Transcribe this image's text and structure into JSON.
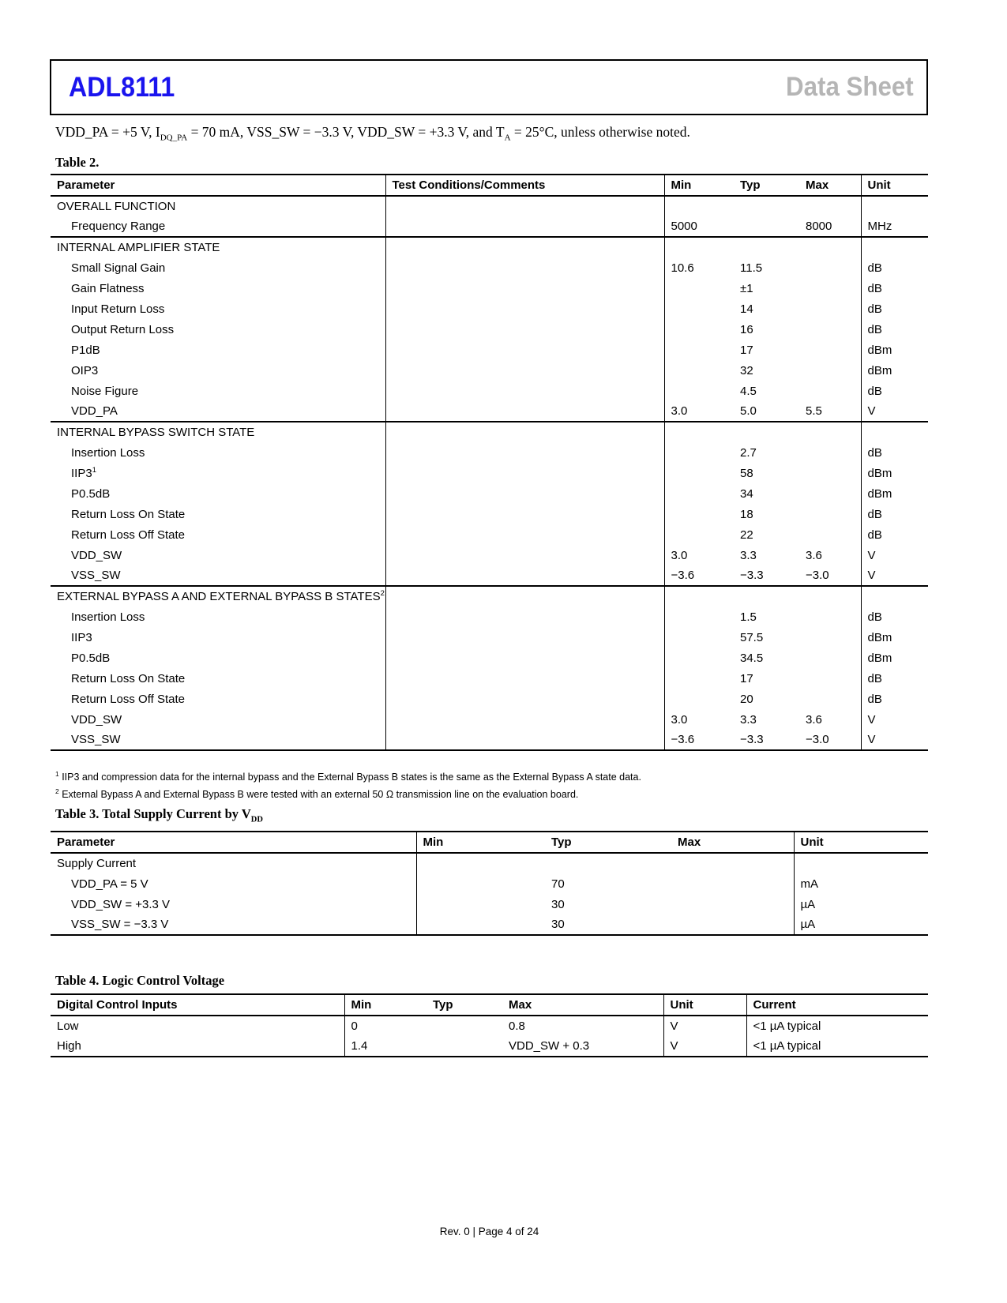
{
  "header": {
    "part": "ADL8111",
    "doc_type": "Data Sheet",
    "part_color": "#1a14ee",
    "doc_type_color": "#b5b5b5"
  },
  "intro_segments": [
    {
      "t": "VDD_PA = +5 V, I"
    },
    {
      "sub": "DQ_PA"
    },
    {
      "t": " = 70 mA, VSS_SW = −3.3 V, VDD_SW = +3.3 V, and T"
    },
    {
      "sub": "A"
    },
    {
      "t": " = 25°C, unless otherwise noted."
    }
  ],
  "table2": {
    "caption": [
      {
        "t": "Table 2."
      }
    ],
    "columns": [
      "Parameter",
      "Test Conditions/Comments",
      "Min",
      "Typ",
      "Max",
      "Unit"
    ],
    "sections": [
      {
        "name": "OVERALL FUNCTION",
        "rows": [
          {
            "param": "Frequency Range",
            "cond": "",
            "min": "5000",
            "typ": "",
            "max": "8000",
            "unit": "MHz"
          }
        ]
      },
      {
        "name": "INTERNAL AMPLIFIER STATE",
        "rows": [
          {
            "param": "Small Signal Gain",
            "cond": "",
            "min": "10.6",
            "typ": "11.5",
            "max": "",
            "unit": "dB"
          },
          {
            "param": "Gain Flatness",
            "cond": "",
            "min": "",
            "typ": "±1",
            "max": "",
            "unit": "dB"
          },
          {
            "param": "Input Return Loss",
            "cond": "",
            "min": "",
            "typ": "14",
            "max": "",
            "unit": "dB"
          },
          {
            "param": "Output Return Loss",
            "cond": "",
            "min": "",
            "typ": "16",
            "max": "",
            "unit": "dB"
          },
          {
            "param": "P1dB",
            "cond": "",
            "min": "",
            "typ": "17",
            "max": "",
            "unit": "dBm"
          },
          {
            "param": "OIP3",
            "cond": "",
            "min": "",
            "typ": "32",
            "max": "",
            "unit": "dBm"
          },
          {
            "param": "Noise Figure",
            "cond": "",
            "min": "",
            "typ": "4.5",
            "max": "",
            "unit": "dB"
          },
          {
            "param": "VDD_PA",
            "cond": "",
            "min": "3.0",
            "typ": "5.0",
            "max": "5.5",
            "unit": "V"
          }
        ]
      },
      {
        "name": "INTERNAL BYPASS SWITCH STATE",
        "rows": [
          {
            "param": "Insertion Loss",
            "cond": "",
            "min": "",
            "typ": "2.7",
            "max": "",
            "unit": "dB"
          },
          {
            "param": "IIP3",
            "param_sup": "1",
            "cond": "",
            "min": "",
            "typ": "58",
            "max": "",
            "unit": "dBm"
          },
          {
            "param": "P0.5dB",
            "cond": "",
            "min": "",
            "typ": "34",
            "max": "",
            "unit": "dBm"
          },
          {
            "param": "Return Loss On State",
            "cond": "",
            "min": "",
            "typ": "18",
            "max": "",
            "unit": "dB"
          },
          {
            "param": "Return Loss Off State",
            "cond": "",
            "min": "",
            "typ": "22",
            "max": "",
            "unit": "dB"
          },
          {
            "param": "VDD_SW",
            "cond": "",
            "min": "3.0",
            "typ": "3.3",
            "max": "3.6",
            "unit": "V"
          },
          {
            "param": "VSS_SW",
            "cond": "",
            "min": "−3.6",
            "typ": "−3.3",
            "max": "−3.0",
            "unit": "V"
          }
        ]
      },
      {
        "name": "EXTERNAL BYPASS A AND EXTERNAL BYPASS B STATES",
        "name_sup": "2",
        "rows": [
          {
            "param": "Insertion Loss",
            "cond": "",
            "min": "",
            "typ": "1.5",
            "max": "",
            "unit": "dB"
          },
          {
            "param": "IIP3",
            "cond": "",
            "min": "",
            "typ": "57.5",
            "max": "",
            "unit": "dBm"
          },
          {
            "param": "P0.5dB",
            "cond": "",
            "min": "",
            "typ": "34.5",
            "max": "",
            "unit": "dBm"
          },
          {
            "param": "Return Loss On State",
            "cond": "",
            "min": "",
            "typ": "17",
            "max": "",
            "unit": "dB"
          },
          {
            "param": "Return Loss Off State",
            "cond": "",
            "min": "",
            "typ": "20",
            "max": "",
            "unit": "dB"
          },
          {
            "param": "VDD_SW",
            "cond": "",
            "min": "3.0",
            "typ": "3.3",
            "max": "3.6",
            "unit": "V"
          },
          {
            "param": "VSS_SW",
            "cond": "",
            "min": "−3.6",
            "typ": "−3.3",
            "max": "−3.0",
            "unit": "V"
          }
        ]
      }
    ]
  },
  "footnotes": [
    {
      "sup": "1",
      "text": " IIP3 and compression data for the internal bypass and the External Bypass B states is the same as the External Bypass A state data."
    },
    {
      "sup": "2",
      "text": " External Bypass A and External Bypass B were tested with an external 50 Ω transmission line on the evaluation board."
    }
  ],
  "table3": {
    "caption": [
      {
        "t": "Table 3. Total Supply Current by V"
      },
      {
        "sub": "DD"
      }
    ],
    "columns": [
      "Parameter",
      "Min",
      "Typ",
      "Max",
      "Unit"
    ],
    "sections": [
      {
        "name": "Supply Current",
        "rows": [
          {
            "param": "VDD_PA = 5 V",
            "min": "",
            "typ": "70",
            "max": "",
            "unit": "mA"
          },
          {
            "param": "VDD_SW = +3.3 V",
            "min": "",
            "typ": "30",
            "max": "",
            "unit": "µA"
          },
          {
            "param": "VSS_SW = −3.3 V",
            "min": "",
            "typ": "30",
            "max": "",
            "unit": "µA"
          }
        ]
      }
    ]
  },
  "table4": {
    "caption": [
      {
        "t": "Table 4. Logic Control Voltage"
      }
    ],
    "columns": [
      "Digital Control Inputs",
      "Min",
      "Typ",
      "Max",
      "Unit",
      "Current"
    ],
    "rows": [
      {
        "input": "Low",
        "min": "0",
        "typ": "",
        "max": "0.8",
        "unit": "V",
        "current": "<1 µA typical"
      },
      {
        "input": "High",
        "min": "1.4",
        "typ": "",
        "max": "VDD_SW + 0.3",
        "unit": "V",
        "current": "<1 µA typical"
      }
    ]
  },
  "footer": {
    "text": "Rev. 0 | Page 4 of 24"
  }
}
